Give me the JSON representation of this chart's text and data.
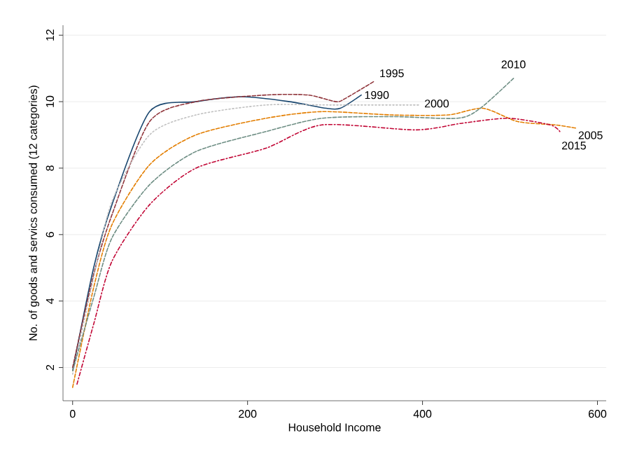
{
  "chart_data": {
    "type": "line",
    "xlabel": "Household Income",
    "ylabel": "No. of goods and servics consumed (12 categories)",
    "xlim": [
      -11,
      610
    ],
    "ylim": [
      1.0,
      12.3
    ],
    "xticks": [
      0,
      200,
      400,
      600
    ],
    "yticks": [
      2,
      4,
      6,
      8,
      10,
      12
    ],
    "grid": "y",
    "series": [
      {
        "name": "1990",
        "color": "#1a476f",
        "line_style": "solid",
        "x": [
          0,
          24,
          45,
          88,
          141,
          194,
          248,
          290,
          306,
          330
        ],
        "values": [
          1.9,
          5.0,
          6.9,
          9.7,
          10.0,
          10.15,
          10.0,
          9.8,
          9.8,
          10.2
        ]
      },
      {
        "name": "1995",
        "color": "#90353b",
        "line_style": "dashed",
        "x": [
          0,
          24,
          45,
          88,
          141,
          221,
          269,
          301,
          312,
          344
        ],
        "values": [
          2.0,
          4.8,
          6.6,
          9.4,
          10.0,
          10.2,
          10.2,
          10.0,
          10.1,
          10.6
        ]
      },
      {
        "name": "2000",
        "color": "#c0c0c0",
        "line_style": "dotted",
        "x": [
          0,
          24,
          45,
          88,
          141,
          221,
          295,
          397
        ],
        "values": [
          1.8,
          4.7,
          7.0,
          9.0,
          9.6,
          9.9,
          9.9,
          9.9
        ]
      },
      {
        "name": "2005",
        "color": "#e37e00",
        "line_style": "dashed",
        "x": [
          0,
          24,
          45,
          88,
          141,
          221,
          285,
          365,
          429,
          469,
          509,
          552,
          576
        ],
        "values": [
          1.4,
          4.4,
          6.3,
          8.1,
          9.0,
          9.5,
          9.7,
          9.6,
          9.6,
          9.8,
          9.4,
          9.3,
          9.2
        ]
      },
      {
        "name": "2010",
        "color": "#6e8e84",
        "line_style": "dashed",
        "x": [
          0,
          24,
          45,
          88,
          141,
          221,
          285,
          365,
          440,
          466,
          504
        ],
        "values": [
          1.9,
          4.1,
          5.9,
          7.5,
          8.5,
          9.1,
          9.5,
          9.55,
          9.5,
          9.8,
          10.7
        ]
      },
      {
        "name": "2015",
        "color": "#c10534",
        "line_style": "dashdot",
        "x": [
          5,
          24,
          45,
          88,
          141,
          221,
          285,
          392,
          445,
          498,
          546,
          557
        ],
        "values": [
          1.5,
          3.3,
          5.2,
          6.9,
          8.0,
          8.6,
          9.3,
          9.15,
          9.35,
          9.5,
          9.3,
          9.1
        ]
      }
    ]
  }
}
